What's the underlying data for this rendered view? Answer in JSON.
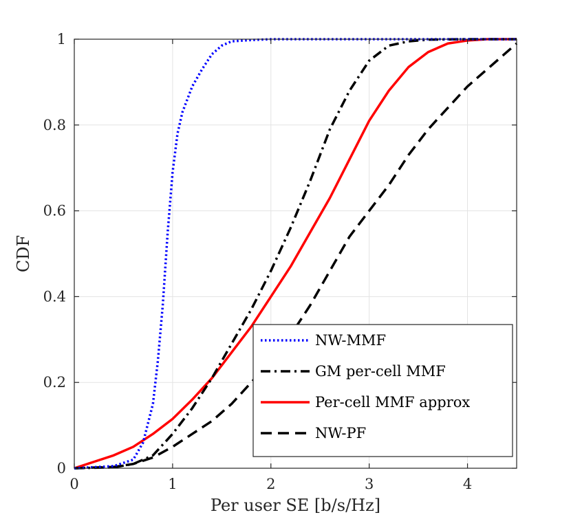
{
  "chart_data": {
    "type": "line",
    "title": "",
    "xlabel": "Per user SE [b/s/Hz]",
    "ylabel": "CDF",
    "xlim": [
      0,
      4.5
    ],
    "ylim": [
      0,
      1
    ],
    "xticks": [
      0,
      1,
      2,
      3,
      4
    ],
    "xtick_labels": [
      "0",
      "1",
      "2",
      "3",
      "4"
    ],
    "yticks": [
      0,
      0.2,
      0.4,
      0.6,
      0.8,
      1
    ],
    "ytick_labels": [
      "0",
      "0.2",
      "0.4",
      "0.6",
      "0.8",
      "1"
    ],
    "grid": true,
    "legend_position": "bottom-right",
    "series": [
      {
        "name": "NW-MMF",
        "color": "#0000ff",
        "style": "dotted",
        "x": [
          0,
          0.4,
          0.6,
          0.7,
          0.8,
          0.85,
          0.9,
          0.95,
          1.0,
          1.05,
          1.1,
          1.2,
          1.3,
          1.4,
          1.5,
          1.6,
          1.8,
          2.0,
          4.5
        ],
        "y": [
          0,
          0.005,
          0.02,
          0.06,
          0.15,
          0.25,
          0.38,
          0.55,
          0.69,
          0.78,
          0.83,
          0.89,
          0.93,
          0.965,
          0.985,
          0.995,
          0.998,
          1.0,
          1.0
        ]
      },
      {
        "name": "GM per-cell MMF",
        "color": "#000000",
        "style": "dashdot",
        "x": [
          0,
          0.4,
          0.6,
          0.8,
          1.0,
          1.2,
          1.4,
          1.6,
          1.8,
          2.0,
          2.2,
          2.4,
          2.6,
          2.8,
          3.0,
          3.2,
          3.4,
          3.6,
          4.0,
          4.5
        ],
        "y": [
          0,
          0.002,
          0.01,
          0.03,
          0.08,
          0.14,
          0.21,
          0.29,
          0.37,
          0.46,
          0.56,
          0.67,
          0.79,
          0.88,
          0.95,
          0.985,
          0.995,
          0.999,
          1.0,
          1.0
        ]
      },
      {
        "name": "Per-cell MMF approx",
        "color": "#ff0000",
        "style": "solid",
        "x": [
          0,
          0.2,
          0.4,
          0.6,
          0.8,
          1.0,
          1.2,
          1.4,
          1.6,
          1.8,
          2.0,
          2.2,
          2.4,
          2.6,
          2.8,
          3.0,
          3.2,
          3.4,
          3.6,
          3.8,
          4.0,
          4.2,
          4.5
        ],
        "y": [
          0,
          0.015,
          0.03,
          0.05,
          0.08,
          0.115,
          0.16,
          0.21,
          0.27,
          0.33,
          0.4,
          0.47,
          0.55,
          0.63,
          0.72,
          0.81,
          0.88,
          0.935,
          0.97,
          0.99,
          0.997,
          1.0,
          1.0
        ]
      },
      {
        "name": "NW-PF",
        "color": "#000000",
        "style": "dashed",
        "x": [
          0,
          0.4,
          0.6,
          0.8,
          1.0,
          1.2,
          1.4,
          1.6,
          1.8,
          2.0,
          2.2,
          2.4,
          2.6,
          2.8,
          3.0,
          3.2,
          3.4,
          3.6,
          3.8,
          4.0,
          4.2,
          4.4,
          4.5
        ],
        "y": [
          0,
          0.003,
          0.01,
          0.025,
          0.05,
          0.08,
          0.11,
          0.15,
          0.2,
          0.25,
          0.31,
          0.38,
          0.46,
          0.54,
          0.6,
          0.66,
          0.73,
          0.79,
          0.84,
          0.89,
          0.93,
          0.97,
          0.99
        ]
      }
    ]
  }
}
